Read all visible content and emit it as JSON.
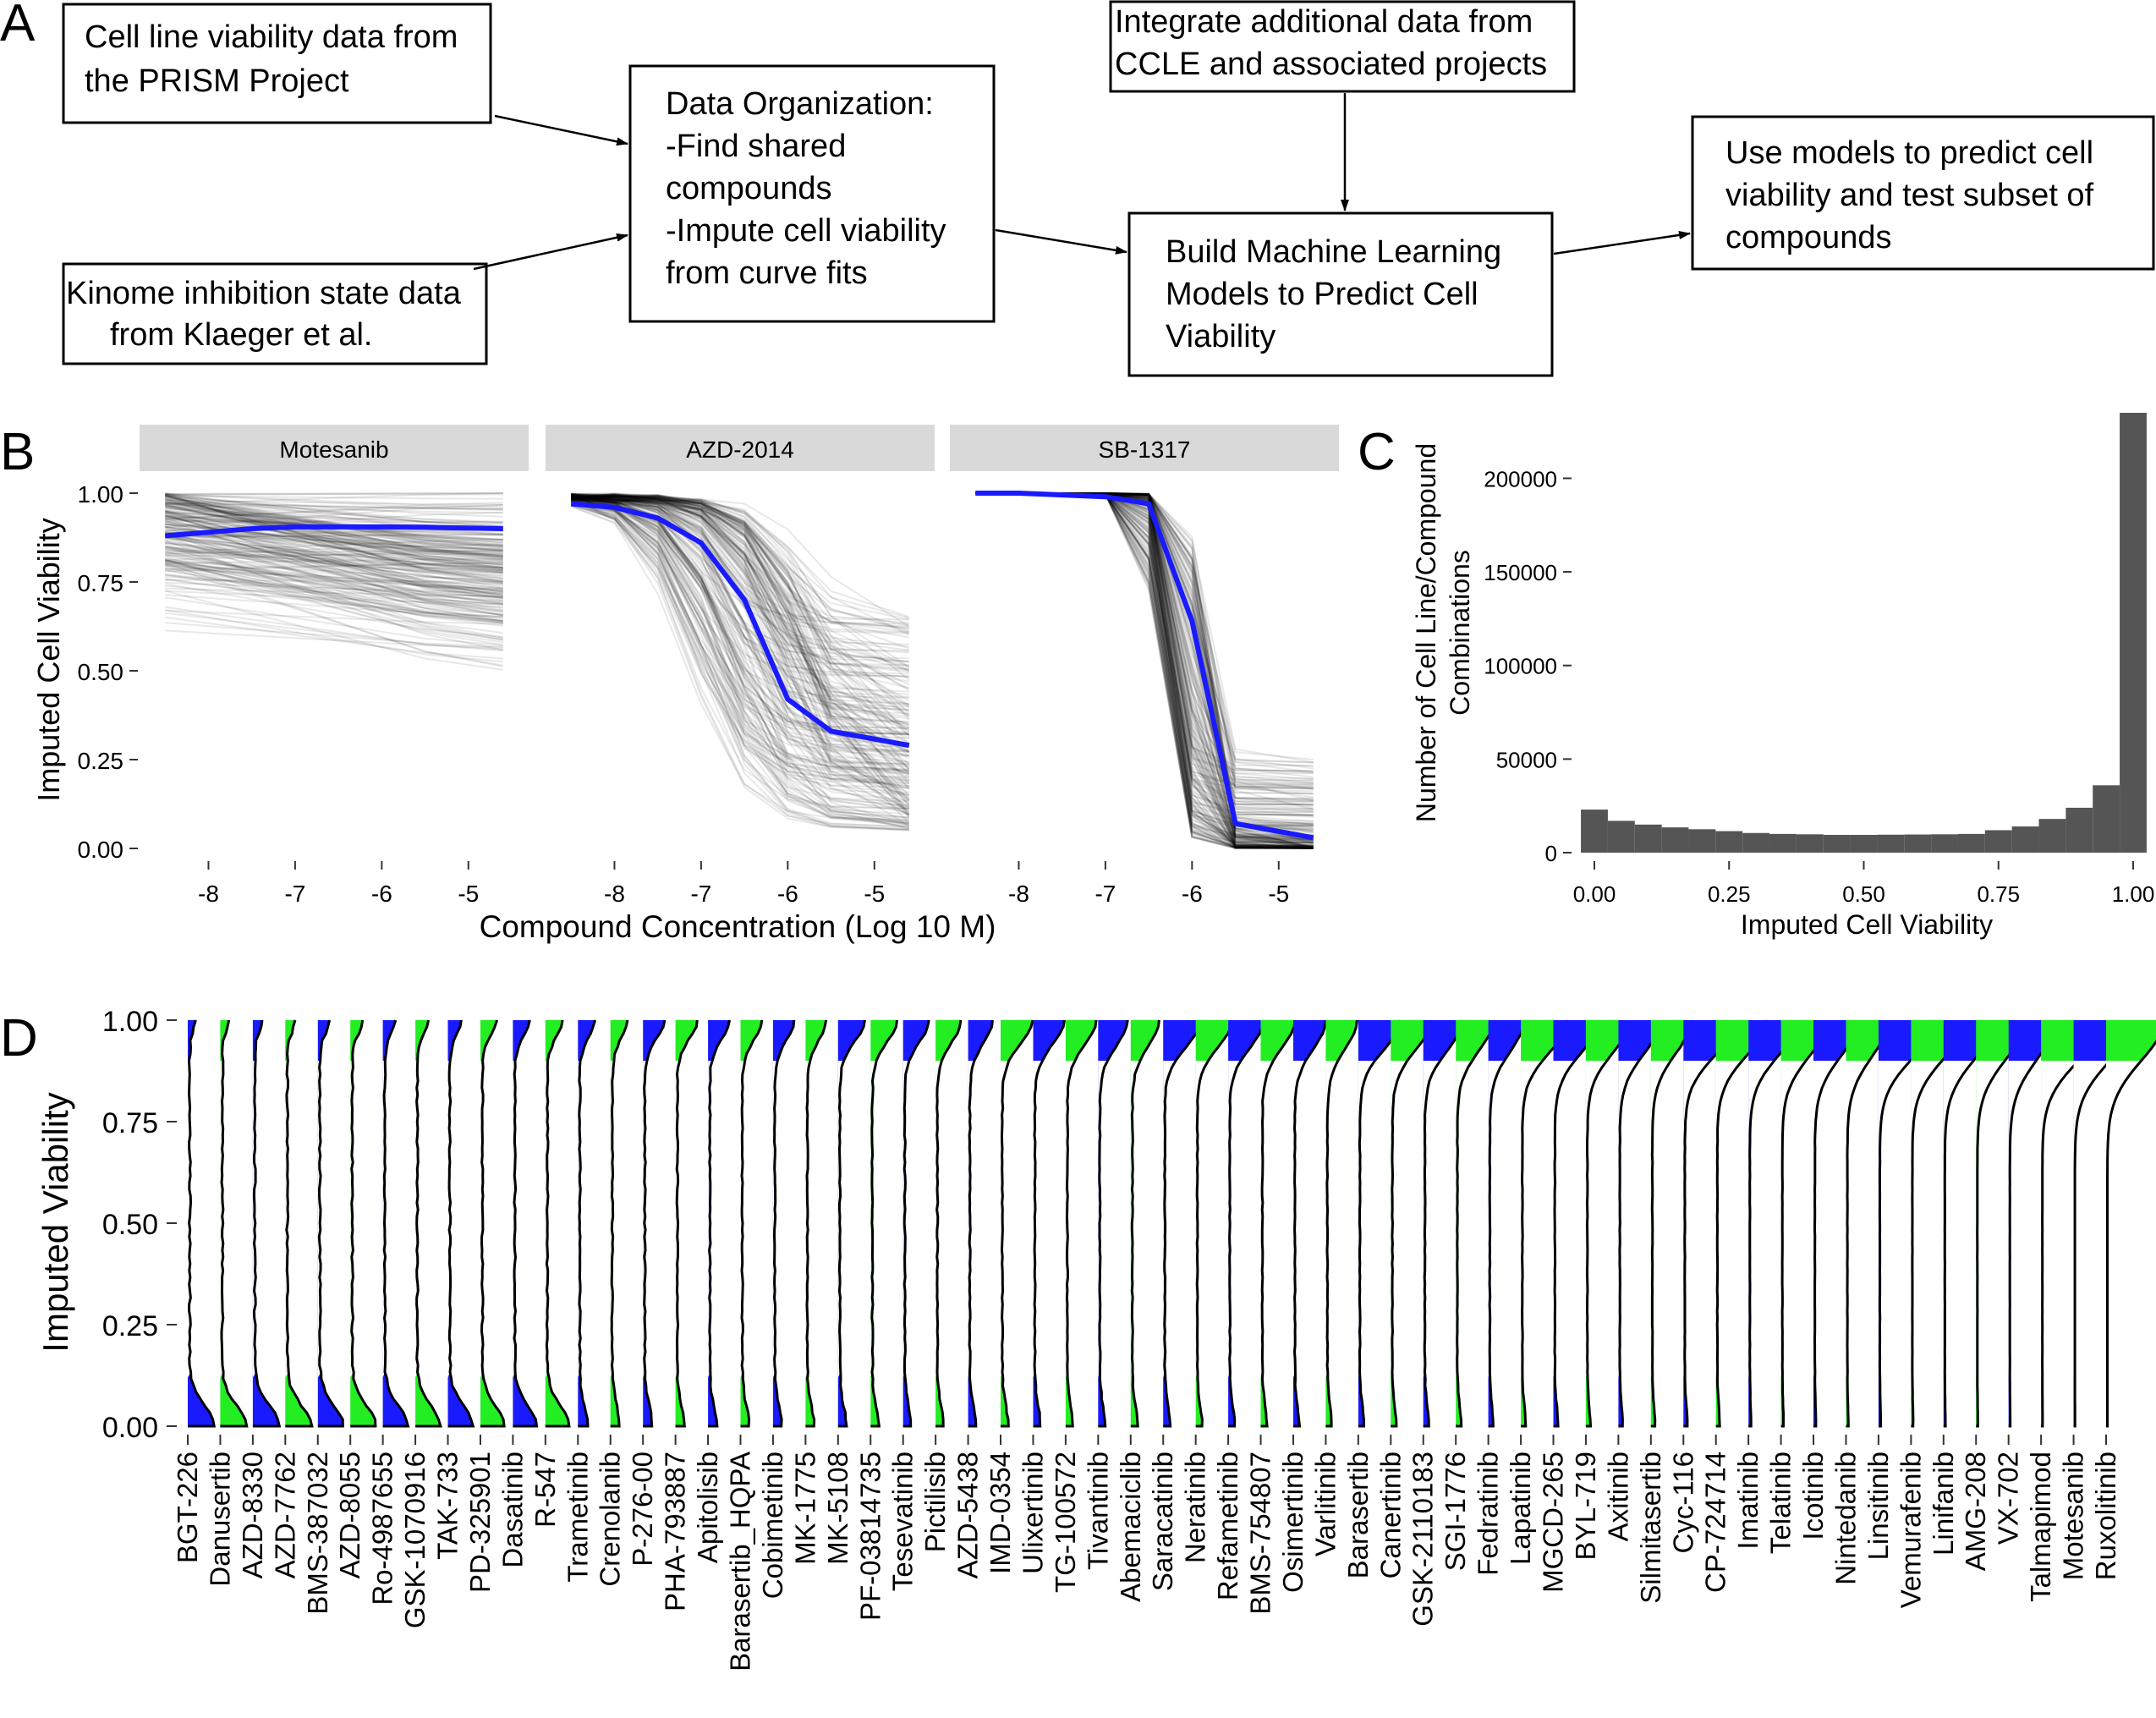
{
  "panels": {
    "A": {
      "letter": "A",
      "boxes": [
        {
          "id": "prism",
          "lines": [
            "Cell line viability data from",
            "the PRISM Project"
          ]
        },
        {
          "id": "kinome",
          "lines": [
            "Kinome inhibition state data",
            "from Klaeger et al."
          ]
        },
        {
          "id": "org",
          "lines": [
            "Data Organization:",
            "-Find shared",
            "compounds",
            "-Impute cell viability",
            "from curve fits"
          ]
        },
        {
          "id": "ccle",
          "lines": [
            "Integrate additional data from",
            "CCLE and associated projects"
          ]
        },
        {
          "id": "ml",
          "lines": [
            "Build Machine Learning",
            "Models to Predict Cell",
            "Viability"
          ]
        },
        {
          "id": "use",
          "lines": [
            "Use models to predict cell",
            "viability and test subset of",
            "compounds"
          ]
        }
      ]
    },
    "B": {
      "letter": "B",
      "ylabel": "Imputed Cell Viability",
      "xlabel": "Compound Concentration (Log 10 M)",
      "yticks": [
        "1.00",
        "0.75",
        "0.50",
        "0.25",
        "0.00"
      ],
      "xticks": [
        "-8",
        "-7",
        "-6",
        "-5"
      ]
    },
    "C": {
      "letter": "C",
      "ylabel_lines": [
        "Number of Cell Line/Compound",
        "Combinations"
      ],
      "xlabel": "Imputed Cell Viability",
      "yticks": [
        "200000",
        "150000",
        "100000",
        "50000",
        "0"
      ],
      "xticks": [
        "0.00",
        "0.25",
        "0.50",
        "0.75",
        "1.00"
      ]
    },
    "D": {
      "letter": "D",
      "ylabel": "Imputed Viability",
      "yticks": [
        "1.00",
        "0.75",
        "0.50",
        "0.25",
        "0.00"
      ]
    }
  },
  "chart_data": [
    {
      "type": "line",
      "panel": "B",
      "facets": [
        "Motesanib",
        "AZD-2014",
        "SB-1317"
      ],
      "x": [
        -8.5,
        -8,
        -7.5,
        -7,
        -6.5,
        -6,
        -5.5,
        -4.6
      ],
      "series": [
        {
          "facet": "Motesanib",
          "values": [
            0.88,
            0.89,
            0.9,
            0.905,
            0.905,
            0.905,
            0.904,
            0.9
          ]
        },
        {
          "facet": "AZD-2014",
          "values": [
            0.97,
            0.96,
            0.93,
            0.86,
            0.7,
            0.42,
            0.33,
            0.29
          ]
        },
        {
          "facet": "SB-1317",
          "values": [
            1.0,
            1.0,
            0.995,
            0.99,
            0.97,
            0.64,
            0.07,
            0.03
          ]
        }
      ],
      "xlim": [
        -8.6,
        -4.5
      ],
      "ylim": [
        0,
        1
      ],
      "mean_color": "#1a1aff",
      "line_color": "#000000"
    },
    {
      "type": "bar",
      "panel": "C",
      "bin_centers": [
        0.0,
        0.05,
        0.1,
        0.15,
        0.2,
        0.25,
        0.3,
        0.35,
        0.4,
        0.45,
        0.5,
        0.55,
        0.6,
        0.65,
        0.7,
        0.75,
        0.8,
        0.85,
        0.9,
        0.95,
        1.0
      ],
      "values": [
        23000,
        17000,
        15000,
        13500,
        12500,
        11500,
        10500,
        10000,
        9800,
        9500,
        9500,
        9600,
        9700,
        9800,
        10000,
        12000,
        14000,
        18000,
        24000,
        36000,
        235000
      ],
      "xlim": [
        0,
        1
      ],
      "ylim": [
        0,
        235000
      ],
      "color": "#555555"
    },
    {
      "type": "area",
      "panel": "D",
      "categories": [
        "BGT-226",
        "Danusertib",
        "AZD-8330",
        "AZD-7762",
        "BMS-387032",
        "AZD-8055",
        "Ro-4987655",
        "GSK-1070916",
        "TAK-733",
        "PD-325901",
        "Dasatinib",
        "R-547",
        "Trametinib",
        "Crenolanib",
        "P-276-00",
        "PHA-793887",
        "Apitolisib",
        "Barasertib_HQPA",
        "Cobimetinib",
        "MK-1775",
        "MK-5108",
        "PF-03814735",
        "Tesevatinib",
        "Pictilisib",
        "AZD-5438",
        "IMD-0354",
        "Ulixertinib",
        "TG-100572",
        "Tivantinib",
        "Abemaciclib",
        "Saracatinib",
        "Neratinib",
        "Refametinib",
        "BMS-754807",
        "Osimertinib",
        "Varlitinib",
        "Barasertib",
        "Canertinib",
        "GSK-2110183",
        "SGI-1776",
        "Fedratinib",
        "Lapatinib",
        "MGCD-265",
        "BYL-719",
        "Axitinib",
        "Silmitasertib",
        "Cyc-116",
        "CP-724714",
        "Imatinib",
        "Telatinib",
        "Icotinib",
        "Nintedanib",
        "Linsitinib",
        "Vemurafenib",
        "Linifanib",
        "AMG-208",
        "VX-702",
        "Talmapimod",
        "Motesanib",
        "Ruxolitinib"
      ],
      "ylim": [
        0,
        1
      ],
      "colors": [
        "#1a1aff",
        "#22ee22"
      ]
    }
  ]
}
